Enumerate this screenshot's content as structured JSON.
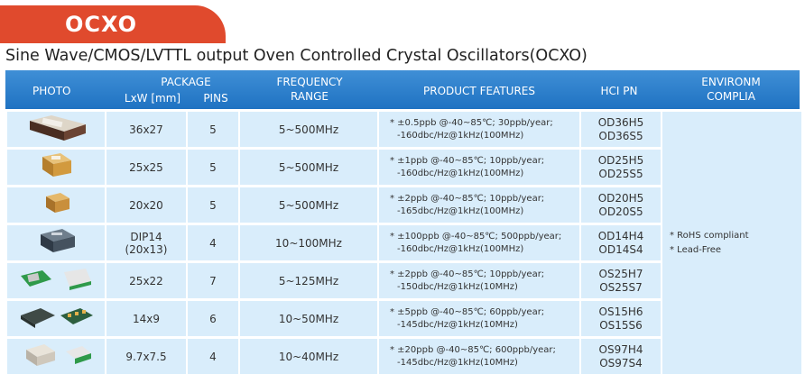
{
  "tab": {
    "label": "OCXO"
  },
  "subtitle": "Sine Wave/CMOS/LVTTL output Oven Controlled Crystal Oscillators(OCXO)",
  "colors": {
    "accent": "#e04a2d",
    "header": "#1f72c2",
    "cell": "#d9edfb"
  },
  "header": {
    "photo": "PHOTO",
    "package": "PACKAGE",
    "lxw": "LxW [mm]",
    "pins": "PINS",
    "freq_line1": "FREQUENCY",
    "freq_line2": "RANGE",
    "features": "PRODUCT FEATURES",
    "hci": "HCI PN",
    "env_line1": "ENVIRONM",
    "env_line2": "COMPLIA"
  },
  "rows": [
    {
      "size": "36x27",
      "size2": "",
      "pins": "5",
      "freq": "5~500MHz",
      "feat1": "* ±0.5ppb @-40~85℃;  30ppb/year;",
      "feat2": "-160dbc/Hz@1kHz(100MHz)",
      "pn1": "OD36H5",
      "pn2": "OD36S5",
      "photo_icon": "large-metal-ocxo-icon"
    },
    {
      "size": "25x25",
      "size2": "",
      "pins": "5",
      "freq": "5~500MHz",
      "feat1": "* ±1ppb @-40~85℃;  10ppb/year;",
      "feat2": "-160dbc/Hz@1kHz(100MHz)",
      "pn1": "OD25H5",
      "pn2": "OD25S5",
      "photo_icon": "gold-ocxo-icon"
    },
    {
      "size": "20x20",
      "size2": "",
      "pins": "5",
      "freq": "5~500MHz",
      "feat1": "* ±2ppb @-40~85℃;  10ppb/year;",
      "feat2": "-165dbc/Hz@1kHz(100MHz)",
      "pn1": "OD20H5",
      "pn2": "OD20S5",
      "photo_icon": "gold-ocxo-small-icon"
    },
    {
      "size": "DIP14",
      "size2": "(20x13)",
      "pins": "4",
      "freq": "10~100MHz",
      "feat1": "* ±100ppb @-40~85℃;  500ppb/year;",
      "feat2": "-160dbc/Hz@1kHz(100MHz)",
      "pn1": "OD14H4",
      "pn2": "OD14S4",
      "photo_icon": "dip14-ocxo-icon"
    },
    {
      "size": "25x22",
      "size2": "",
      "pins": "7",
      "freq": "5~125MHz",
      "feat1": "* ±2ppb @-40~85℃;  10ppb/year;",
      "feat2": "-150dbc/Hz@1kHz(10MHz)",
      "pn1": "OS25H7",
      "pn2": "OS25S7",
      "photo_icon": "smd-board-ocxo-icon"
    },
    {
      "size": "14x9",
      "size2": "",
      "pins": "6",
      "freq": "10~50MHz",
      "feat1": "* ±5ppb @-40~85℃;  60ppb/year;",
      "feat2": "-145dbc/Hz@1kHz(10MHz)",
      "pn1": "OS15H6",
      "pn2": "OS15S6",
      "photo_icon": "smd-small-ocxo-icon"
    },
    {
      "size": "9.7x7.5",
      "size2": "",
      "pins": "4",
      "freq": "10~40MHz",
      "feat1": "* ±20ppb @-40~85℃;  600ppb/year;",
      "feat2": "-145dbc/Hz@1kHz(10MHz)",
      "pn1": "OS97H4",
      "pn2": "OS97S4",
      "photo_icon": "smd-tiny-ocxo-icon"
    }
  ],
  "environment": {
    "line1": "* RoHS compliant",
    "line2": "* Lead-Free"
  }
}
